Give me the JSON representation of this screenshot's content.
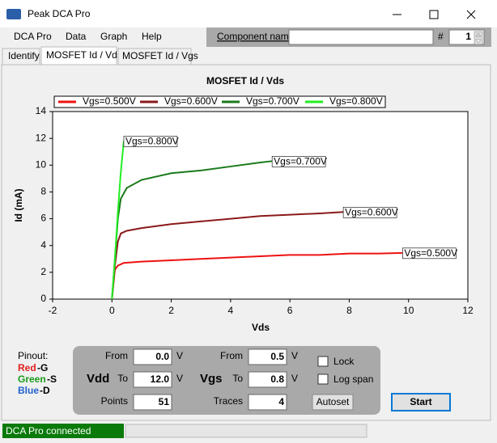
{
  "window": {
    "title": "Peak DCA Pro"
  },
  "menu": [
    "DCA Pro",
    "Data",
    "Graph",
    "Help"
  ],
  "component": {
    "label": "Component name",
    "number_label": "#",
    "number": "1"
  },
  "tabs": [
    "Identify",
    "MOSFET Id / Vds",
    "MOSFET Id / Vgs"
  ],
  "chart_data": {
    "type": "line",
    "title": "MOSFET Id / Vds",
    "x_label": "Vds",
    "y_label": "Id (mA)",
    "xlim": [
      -2,
      12
    ],
    "xticks": [
      -2,
      0,
      2,
      4,
      6,
      8,
      10,
      12
    ],
    "ylim": [
      0,
      14
    ],
    "yticks": [
      0,
      2,
      4,
      6,
      8,
      10,
      12,
      14
    ],
    "grid": false,
    "series": [
      {
        "name": "Vgs=0.500V",
        "color": "#ee1111",
        "x": [
          0,
          0.1,
          0.2,
          0.4,
          1,
          2,
          3,
          4,
          5,
          6,
          7,
          8,
          9,
          9.8
        ],
        "values": [
          0,
          2.2,
          2.5,
          2.7,
          2.8,
          2.9,
          3.0,
          3.1,
          3.2,
          3.3,
          3.3,
          3.4,
          3.4,
          3.45
        ]
      },
      {
        "name": "Vgs=0.600V",
        "color": "#8b1a1a",
        "x": [
          0,
          0.1,
          0.2,
          0.3,
          0.5,
          1,
          2,
          3,
          4,
          5,
          6,
          7,
          7.8
        ],
        "values": [
          0,
          2.5,
          4.3,
          4.9,
          5.1,
          5.3,
          5.6,
          5.8,
          6.0,
          6.2,
          6.3,
          6.4,
          6.5
        ]
      },
      {
        "name": "Vgs=0.700V",
        "color": "#1a7a1a",
        "x": [
          0,
          0.1,
          0.2,
          0.3,
          0.5,
          1,
          2,
          3,
          4,
          5,
          5.4
        ],
        "values": [
          0,
          3,
          6,
          7.5,
          8.3,
          8.9,
          9.4,
          9.6,
          9.9,
          10.2,
          10.3
        ]
      },
      {
        "name": "Vgs=0.800V",
        "color": "#22ee22",
        "x": [
          0,
          0.1,
          0.2,
          0.3,
          0.4
        ],
        "values": [
          0,
          3,
          6.5,
          9.5,
          11.8
        ]
      }
    ]
  },
  "pinout": {
    "title": "Pinout:",
    "pins": [
      {
        "color": "Red",
        "pin": "-G"
      },
      {
        "color": "Green",
        "pin": "-S"
      },
      {
        "color": "Blue",
        "pin": "-D"
      }
    ]
  },
  "vdd": {
    "label": "Vdd",
    "from_label": "From",
    "from": "0.0",
    "to_label": "To",
    "to": "12.0",
    "unit": "V",
    "points_label": "Points",
    "points": "51"
  },
  "vgs": {
    "label": "Vgs",
    "from_label": "From",
    "from": "0.5",
    "to_label": "To",
    "to": "0.8",
    "unit": "V",
    "traces_label": "Traces",
    "traces": "4"
  },
  "options": [
    "Lock",
    "Log span"
  ],
  "buttons": {
    "autoset": "Autoset",
    "start": "Start"
  },
  "status": "DCA Pro connected"
}
